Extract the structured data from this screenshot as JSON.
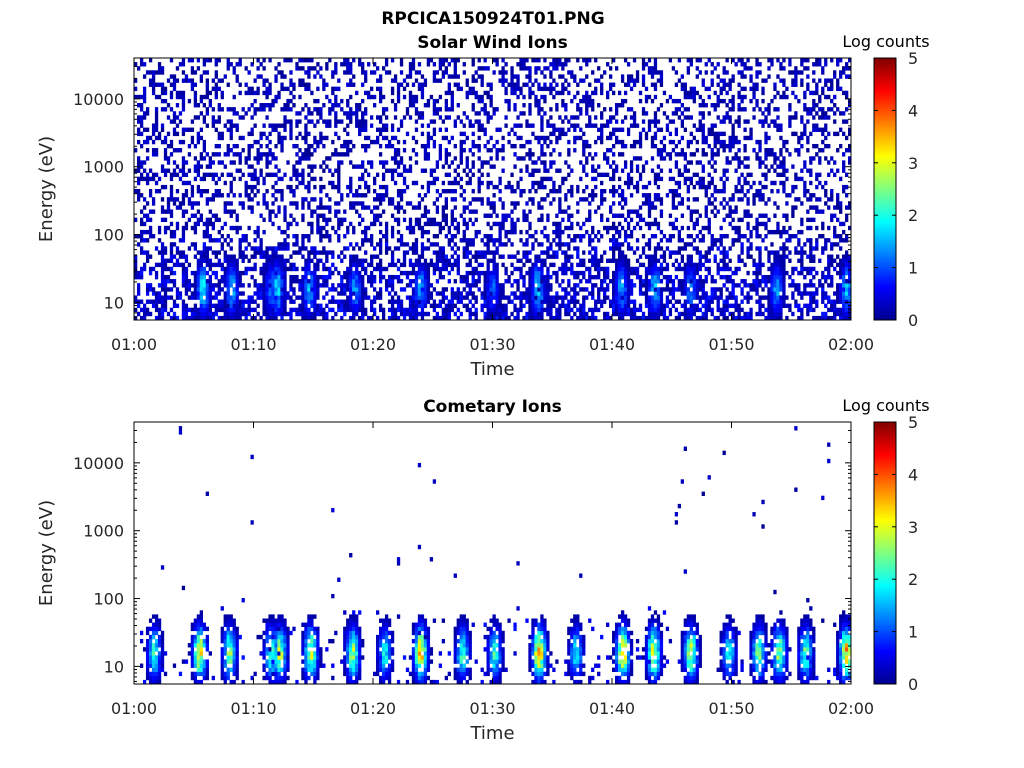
{
  "figure_title": "RPCICA150924T01.PNG",
  "chart_data": [
    {
      "type": "heatmap",
      "title": "Solar Wind Ions",
      "xlabel": "Time",
      "ylabel": "Energy (eV)",
      "x_ticks": [
        "01:00",
        "01:10",
        "01:20",
        "01:30",
        "01:40",
        "01:50",
        "02:00"
      ],
      "x_range": [
        "01:00",
        "02:00"
      ],
      "y_scale": "log",
      "y_ticks": [
        "10",
        "100",
        "1000",
        "10000"
      ],
      "y_range": [
        5.5,
        40000
      ],
      "colorbar": {
        "label": "Log counts",
        "ticks": [
          "0",
          "1",
          "2",
          "3",
          "4",
          "5"
        ],
        "range": [
          0,
          5
        ],
        "colormap": "jet"
      },
      "background_density": 0.34,
      "low_energy_density": 0.6,
      "bursts": [
        {
          "time_min": 5.8,
          "peak_log_counts": 1.9
        },
        {
          "time_min": 8.2,
          "peak_log_counts": 1.6
        },
        {
          "time_min": 11.5,
          "peak_log_counts": 1.3
        },
        {
          "time_min": 12.0,
          "peak_log_counts": 1.8
        },
        {
          "time_min": 14.7,
          "peak_log_counts": 1.6
        },
        {
          "time_min": 18.5,
          "peak_log_counts": 1.4
        },
        {
          "time_min": 24.0,
          "peak_log_counts": 1.5
        },
        {
          "time_min": 30.0,
          "peak_log_counts": 1.2
        },
        {
          "time_min": 33.8,
          "peak_log_counts": 1.9
        },
        {
          "time_min": 40.8,
          "peak_log_counts": 1.5
        },
        {
          "time_min": 43.6,
          "peak_log_counts": 1.7
        },
        {
          "time_min": 46.6,
          "peak_log_counts": 1.4
        },
        {
          "time_min": 53.8,
          "peak_log_counts": 1.5
        },
        {
          "time_min": 59.6,
          "peak_log_counts": 1.7
        }
      ]
    },
    {
      "type": "heatmap",
      "title": "Cometary Ions",
      "xlabel": "Time",
      "ylabel": "Energy (eV)",
      "x_ticks": [
        "01:00",
        "01:10",
        "01:20",
        "01:30",
        "01:40",
        "01:50",
        "02:00"
      ],
      "x_range": [
        "01:00",
        "02:00"
      ],
      "y_scale": "log",
      "y_ticks": [
        "10",
        "100",
        "1000",
        "10000"
      ],
      "y_range": [
        5.5,
        40000
      ],
      "colorbar": {
        "label": "Log counts",
        "ticks": [
          "0",
          "1",
          "2",
          "3",
          "4",
          "5"
        ],
        "range": [
          0,
          5
        ],
        "colormap": "jet"
      },
      "background_density": 0.004,
      "low_energy_density": 0.1,
      "bursts": [
        {
          "time_min": 1.7,
          "peak_log_counts": 2.2
        },
        {
          "time_min": 5.5,
          "peak_log_counts": 3.4
        },
        {
          "time_min": 8.0,
          "peak_log_counts": 2.7
        },
        {
          "time_min": 11.5,
          "peak_log_counts": 2.4
        },
        {
          "time_min": 12.2,
          "peak_log_counts": 3.0
        },
        {
          "time_min": 14.8,
          "peak_log_counts": 3.1
        },
        {
          "time_min": 18.3,
          "peak_log_counts": 2.8
        },
        {
          "time_min": 21.0,
          "peak_log_counts": 2.0
        },
        {
          "time_min": 24.0,
          "peak_log_counts": 3.6
        },
        {
          "time_min": 27.5,
          "peak_log_counts": 2.3
        },
        {
          "time_min": 30.2,
          "peak_log_counts": 2.2
        },
        {
          "time_min": 33.9,
          "peak_log_counts": 3.7
        },
        {
          "time_min": 37.0,
          "peak_log_counts": 2.0
        },
        {
          "time_min": 40.9,
          "peak_log_counts": 3.7
        },
        {
          "time_min": 43.5,
          "peak_log_counts": 3.3
        },
        {
          "time_min": 46.6,
          "peak_log_counts": 3.1
        },
        {
          "time_min": 49.8,
          "peak_log_counts": 2.0
        },
        {
          "time_min": 52.3,
          "peak_log_counts": 2.6
        },
        {
          "time_min": 54.0,
          "peak_log_counts": 2.9
        },
        {
          "time_min": 56.2,
          "peak_log_counts": 2.4
        },
        {
          "time_min": 59.6,
          "peak_log_counts": 3.6
        }
      ]
    }
  ]
}
